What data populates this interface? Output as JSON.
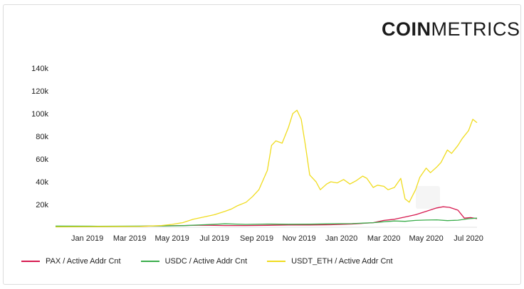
{
  "brand": {
    "bold": "COIN",
    "light": "METRICS"
  },
  "chart_data": {
    "type": "line",
    "title": "",
    "xlabel": "",
    "ylabel": "",
    "xlim": [
      0,
      19.1
    ],
    "ylim": [
      0,
      150000
    ],
    "x_ticks": [
      {
        "label": "Jan 2019",
        "month": 1.5
      },
      {
        "label": "Mar 2019",
        "month": 3.5
      },
      {
        "label": "May 2019",
        "month": 5.5
      },
      {
        "label": "Jul 2019",
        "month": 7.5
      },
      {
        "label": "Sep 2019",
        "month": 9.5
      },
      {
        "label": "Nov 2019",
        "month": 11.5
      },
      {
        "label": "Jan 2020",
        "month": 13.5
      },
      {
        "label": "Mar 2020",
        "month": 15.5
      },
      {
        "label": "May 2020",
        "month": 17.5
      },
      {
        "label": "Jul 2020",
        "month": 19.5
      }
    ],
    "y_ticks": [
      {
        "label": "20k",
        "value": 20000
      },
      {
        "label": "40k",
        "value": 40000
      },
      {
        "label": "60k",
        "value": 60000
      },
      {
        "label": "80k",
        "value": 80000
      },
      {
        "label": "100k",
        "value": 100000
      },
      {
        "label": "120k",
        "value": 120000
      },
      {
        "label": "140k",
        "value": 140000
      }
    ],
    "series": [
      {
        "name": "PAX / Active Addr Cnt",
        "color": "#d6194f",
        "points": [
          [
            0,
            500
          ],
          [
            2,
            800
          ],
          [
            4,
            900
          ],
          [
            5,
            1200
          ],
          [
            6,
            1500
          ],
          [
            7,
            1800
          ],
          [
            8,
            1500
          ],
          [
            9,
            1500
          ],
          [
            10,
            1700
          ],
          [
            11,
            2000
          ],
          [
            12,
            2000
          ],
          [
            13,
            2200
          ],
          [
            14,
            2800
          ],
          [
            15,
            4000
          ],
          [
            15.5,
            6000
          ],
          [
            16,
            7000
          ],
          [
            16.5,
            9000
          ],
          [
            17,
            11000
          ],
          [
            17.5,
            14000
          ],
          [
            18,
            17000
          ],
          [
            18.3,
            18000
          ],
          [
            18.6,
            17500
          ],
          [
            19,
            15000
          ],
          [
            19.3,
            8000
          ],
          [
            19.6,
            8500
          ],
          [
            19.9,
            7500
          ]
        ]
      },
      {
        "name": "USDC / Active Addr Cnt",
        "color": "#3aad4b",
        "points": [
          [
            0,
            1000
          ],
          [
            2,
            900
          ],
          [
            4,
            1000
          ],
          [
            5,
            1100
          ],
          [
            6,
            1400
          ],
          [
            7,
            2200
          ],
          [
            8,
            3000
          ],
          [
            9,
            2500
          ],
          [
            10,
            2800
          ],
          [
            11,
            2600
          ],
          [
            12,
            2700
          ],
          [
            13,
            3000
          ],
          [
            14,
            3200
          ],
          [
            15,
            4000
          ],
          [
            15.5,
            4800
          ],
          [
            16,
            5500
          ],
          [
            16.5,
            5200
          ],
          [
            17,
            6000
          ],
          [
            17.5,
            6300
          ],
          [
            18,
            6500
          ],
          [
            18.5,
            5800
          ],
          [
            19,
            6200
          ],
          [
            19.5,
            7500
          ],
          [
            19.9,
            8000
          ]
        ]
      },
      {
        "name": "USDT_ETH / Active Addr Cnt",
        "color": "#f0dc1e",
        "points": [
          [
            0,
            300
          ],
          [
            2,
            500
          ],
          [
            4,
            700
          ],
          [
            5,
            1500
          ],
          [
            5.5,
            2500
          ],
          [
            6,
            4000
          ],
          [
            6.5,
            7000
          ],
          [
            7,
            9000
          ],
          [
            7.5,
            11000
          ],
          [
            8,
            14000
          ],
          [
            8.3,
            16000
          ],
          [
            8.6,
            19000
          ],
          [
            9,
            22000
          ],
          [
            9.3,
            27000
          ],
          [
            9.6,
            33000
          ],
          [
            10,
            50000
          ],
          [
            10.2,
            72000
          ],
          [
            10.4,
            76000
          ],
          [
            10.7,
            74000
          ],
          [
            11,
            88000
          ],
          [
            11.2,
            100000
          ],
          [
            11.4,
            103000
          ],
          [
            11.6,
            95000
          ],
          [
            11.8,
            72000
          ],
          [
            12,
            46000
          ],
          [
            12.3,
            40000
          ],
          [
            12.5,
            33000
          ],
          [
            12.8,
            38000
          ],
          [
            13,
            40000
          ],
          [
            13.3,
            39000
          ],
          [
            13.6,
            42000
          ],
          [
            13.9,
            38000
          ],
          [
            14.2,
            41000
          ],
          [
            14.5,
            45000
          ],
          [
            14.7,
            43000
          ],
          [
            15,
            35000
          ],
          [
            15.2,
            37000
          ],
          [
            15.5,
            36000
          ],
          [
            15.7,
            33000
          ],
          [
            16,
            35000
          ],
          [
            16.3,
            43000
          ],
          [
            16.5,
            25000
          ],
          [
            16.7,
            22000
          ],
          [
            17,
            33000
          ],
          [
            17.2,
            44000
          ],
          [
            17.5,
            52000
          ],
          [
            17.7,
            48000
          ],
          [
            18,
            53000
          ],
          [
            18.2,
            57000
          ],
          [
            18.5,
            68000
          ],
          [
            18.7,
            65000
          ],
          [
            19,
            72000
          ],
          [
            19.2,
            78000
          ],
          [
            19.5,
            85000
          ],
          [
            19.7,
            95000
          ],
          [
            19.9,
            92000
          ]
        ]
      }
    ],
    "legend_position": "bottom-left"
  }
}
